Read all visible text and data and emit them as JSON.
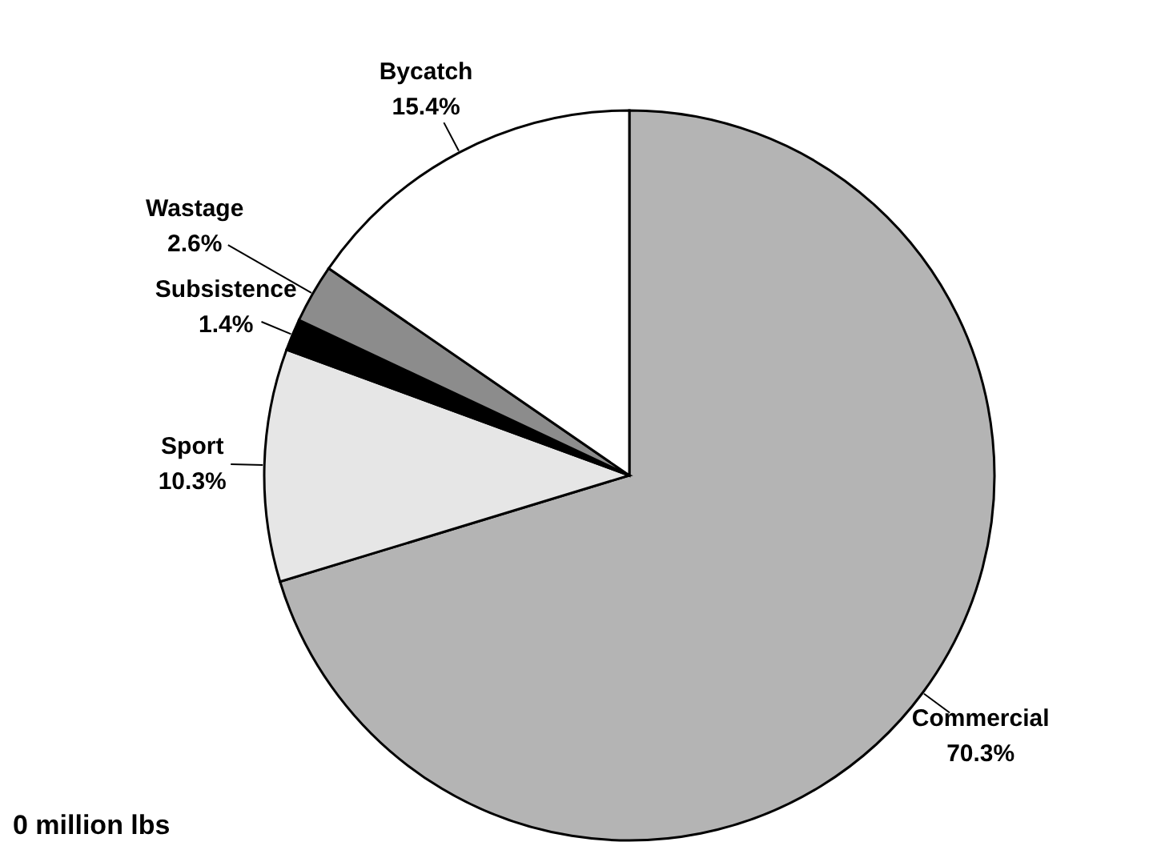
{
  "chart_data": {
    "type": "pie",
    "categories": [
      "Commercial",
      "Sport",
      "Subsistence",
      "Wastage",
      "Bycatch"
    ],
    "values": [
      70.3,
      10.3,
      1.4,
      2.6,
      15.4
    ],
    "value_labels": [
      "70.3%",
      "10.3%",
      "1.4%",
      "2.6%",
      "15.4%"
    ],
    "colors": [
      "#b4b4b4",
      "#e6e6e6",
      "#000000",
      "#8c8c8c",
      "#ffffff"
    ],
    "annotations": [
      "0 million lbs"
    ]
  }
}
